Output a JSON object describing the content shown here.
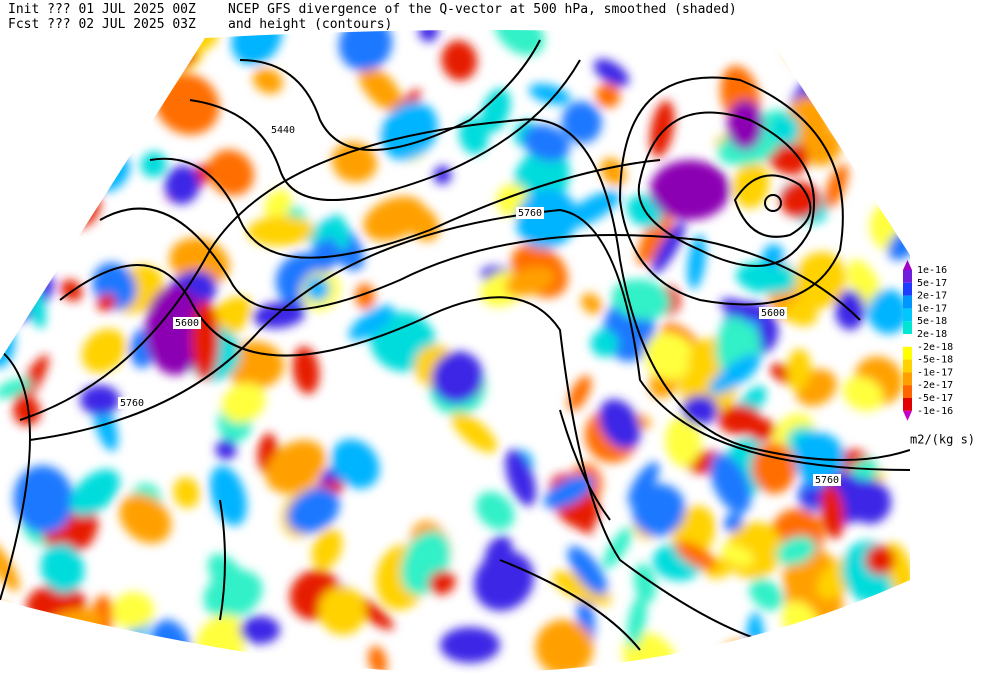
{
  "header": {
    "init": "Init  ??? 01 JUL 2025 00Z",
    "fcst": "Fcst ??? 02 JUL 2025 03Z",
    "title": "NCEP GFS divergence of the Q-vector at 500 hPa, smoothed (shaded)",
    "subtitle": "and height (contours)"
  },
  "contour_labels": [
    "5440",
    "5760",
    "5600",
    "5600",
    "5760",
    "5760"
  ],
  "colorbar": {
    "labels": [
      "1e-16",
      "5e-17",
      "2e-17",
      "1e-17",
      "5e-18",
      "2e-18",
      "-2e-18",
      "-5e-18",
      "-1e-17",
      "-2e-17",
      "-5e-17",
      "-1e-16"
    ],
    "units": "m2/(kg s)"
  }
}
